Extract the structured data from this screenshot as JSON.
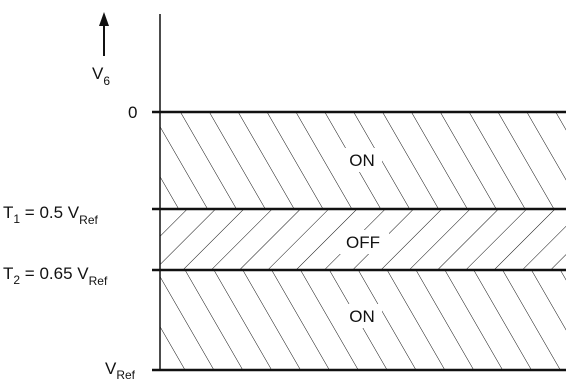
{
  "axis": {
    "symbol": "V",
    "symbol_sub": "6",
    "arrow_icon": "up-arrow-icon"
  },
  "levels": [
    {
      "id": "zero",
      "prefix": "0",
      "prefix_sub": "",
      "text": "",
      "text_sub": ""
    },
    {
      "id": "t1",
      "prefix": "T",
      "prefix_sub": "1",
      "text": " = 0.5 V",
      "text_sub": "Ref"
    },
    {
      "id": "t2",
      "prefix": "T",
      "prefix_sub": "2",
      "text": " = 0.65 V",
      "text_sub": "Ref"
    },
    {
      "id": "vref",
      "prefix": "V",
      "prefix_sub": "Ref",
      "text": "",
      "text_sub": ""
    }
  ],
  "regions": [
    {
      "id": "on-upper",
      "label": "ON",
      "hatch": "backslash"
    },
    {
      "id": "off-middle",
      "label": "OFF",
      "hatch": "slash"
    },
    {
      "id": "on-lower",
      "label": "ON",
      "hatch": "backslash"
    }
  ],
  "colors": {
    "ink": "#111111",
    "background": "#ffffff"
  }
}
